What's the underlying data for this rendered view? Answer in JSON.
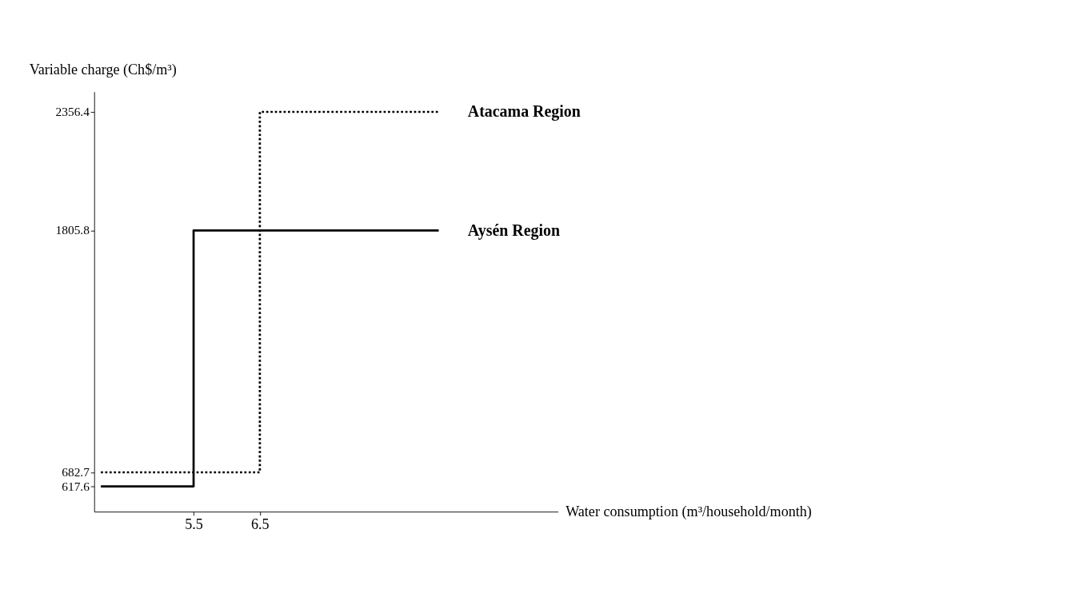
{
  "chart_data": {
    "type": "step",
    "xlabel": "Water consumption (m³/household/month)",
    "ylabel": "Variable charge (Ch$/m³)",
    "xlim": [
      4,
      11
    ],
    "xticks": [
      5.5,
      6.5
    ],
    "ylim": [
      500,
      2450
    ],
    "yticks": [
      617.6,
      682.7,
      1805.8,
      2356.4
    ],
    "grid": false,
    "series": [
      {
        "name": "Atacama Region",
        "color": "#000000",
        "line_style": "dotted",
        "x": [
          4.1,
          6.5,
          9.2
        ],
        "values": [
          682.7,
          2356.4,
          2356.4
        ]
      },
      {
        "name": "Aysén Region",
        "color": "#000000",
        "line_style": "solid",
        "x": [
          4.1,
          5.5,
          9.2
        ],
        "values": [
          617.6,
          1805.8,
          1805.8
        ]
      }
    ]
  }
}
